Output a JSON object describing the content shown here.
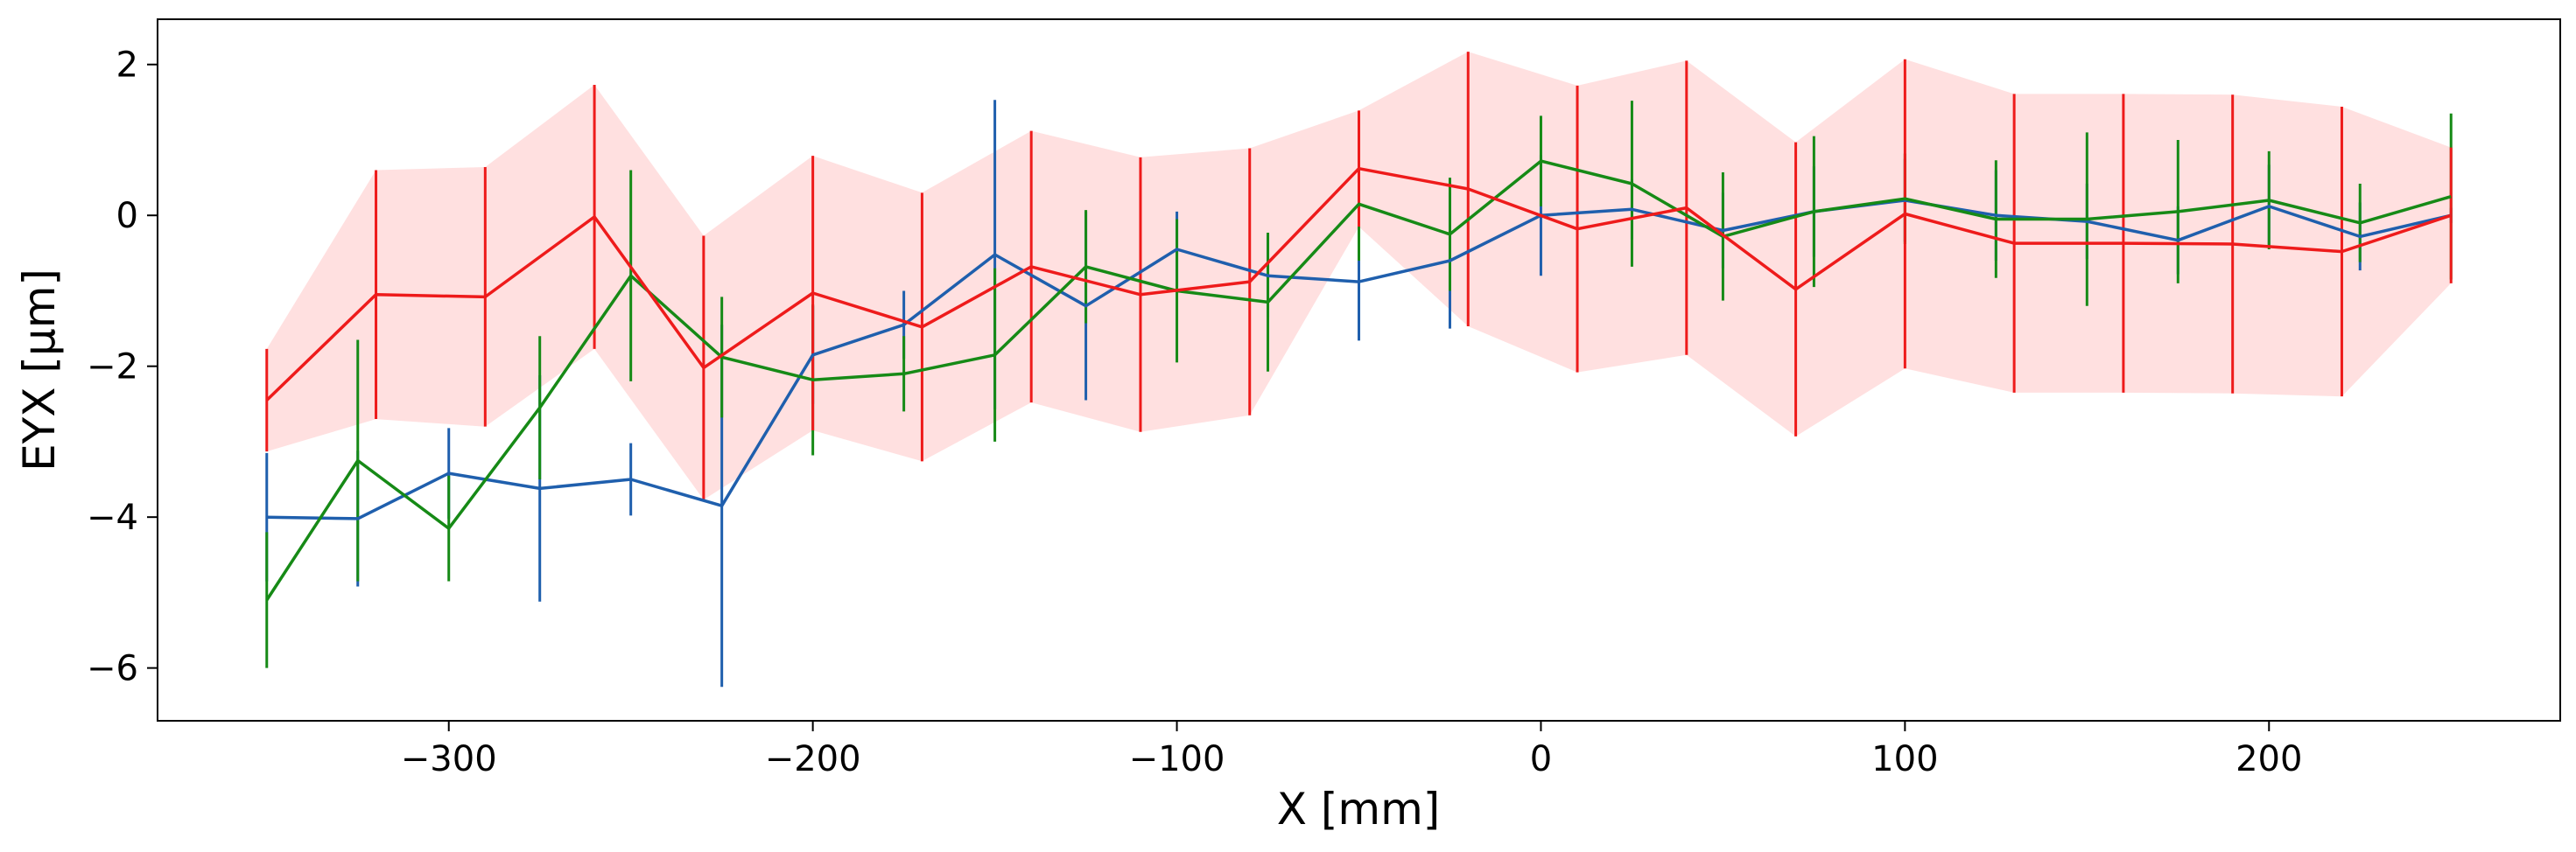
{
  "chart_data": {
    "type": "line",
    "title": "",
    "xlabel": "X [mm]",
    "ylabel": "EYX [µm]",
    "xlim": [
      -380,
      280
    ],
    "ylim": [
      -6.7,
      2.6
    ],
    "xticks": [
      -300,
      -200,
      -100,
      0,
      100,
      200
    ],
    "xtick_labels": [
      "−300",
      "−200",
      "−100",
      "0",
      "100",
      "200"
    ],
    "yticks": [
      2,
      0,
      -2,
      -4,
      -6
    ],
    "ytick_labels": [
      "2",
      "0",
      "−2",
      "−4",
      "−6"
    ],
    "grid": false,
    "legend": "none",
    "series": [
      {
        "name": "blue",
        "color": "#1f5fad",
        "x": [
          -350,
          -325,
          -300,
          -275,
          -250,
          -225,
          -200,
          -175,
          -150,
          -125,
          -100,
          -75,
          -50,
          -25,
          0,
          25,
          50,
          75,
          100,
          125,
          150,
          175,
          200,
          225,
          250
        ],
        "y": [
          -4.0,
          -4.02,
          -3.42,
          -3.62,
          -3.5,
          -3.85,
          -1.85,
          -1.45,
          -0.52,
          -1.2,
          -0.45,
          -0.8,
          -0.88,
          -0.6,
          0.0,
          0.08,
          -0.2,
          0.05,
          0.2,
          0.0,
          -0.08,
          -0.33,
          0.12,
          -0.28,
          0.0
        ],
        "yerr": [
          0.85,
          0.9,
          0.6,
          1.5,
          0.48,
          2.4,
          0.65,
          0.45,
          2.05,
          1.25,
          0.5,
          0.55,
          0.78,
          0.9,
          0.8,
          0.4,
          0.5,
          0.6,
          0.55,
          0.6,
          0.5,
          0.45,
          0.55,
          0.45,
          0.1
        ]
      },
      {
        "name": "green",
        "color": "#168a16",
        "x": [
          -350,
          -325,
          -300,
          -275,
          -250,
          -225,
          -200,
          -175,
          -150,
          -125,
          -100,
          -75,
          -50,
          -25,
          0,
          25,
          50,
          75,
          100,
          125,
          150,
          175,
          200,
          225,
          250
        ],
        "y": [
          -5.1,
          -3.25,
          -4.15,
          -2.55,
          -0.8,
          -1.88,
          -2.18,
          -2.1,
          -1.85,
          -0.68,
          -1.0,
          -1.15,
          0.15,
          -0.25,
          0.72,
          0.42,
          -0.28,
          0.05,
          0.22,
          -0.05,
          -0.05,
          0.05,
          0.2,
          -0.1,
          0.25
        ],
        "yerr": [
          0.9,
          1.6,
          0.7,
          0.95,
          1.4,
          0.8,
          1.0,
          0.5,
          1.15,
          0.75,
          0.95,
          0.92,
          0.75,
          0.75,
          0.6,
          1.1,
          0.85,
          1.0,
          0.6,
          0.78,
          1.15,
          0.95,
          0.65,
          0.52,
          1.1
        ]
      },
      {
        "name": "red",
        "color": "#ee1b1b",
        "x": [
          -350,
          -320,
          -290,
          -260,
          -230,
          -200,
          -170,
          -140,
          -110,
          -80,
          -50,
          -20,
          10,
          40,
          70,
          100,
          130,
          160,
          190,
          220,
          250
        ],
        "y": [
          -2.45,
          -1.05,
          -1.08,
          -0.02,
          -2.02,
          -1.03,
          -1.48,
          -0.68,
          -1.05,
          -0.88,
          0.62,
          0.35,
          -0.18,
          0.1,
          -0.98,
          0.02,
          -0.37,
          -0.37,
          -0.38,
          -0.48,
          0.0
        ],
        "yerr": [
          0.68,
          1.65,
          1.72,
          1.75,
          1.75,
          1.82,
          1.78,
          1.8,
          1.82,
          1.77,
          0.77,
          1.82,
          1.9,
          1.95,
          1.95,
          2.05,
          1.98,
          1.98,
          1.98,
          1.92,
          0.9
        ],
        "band_color": "#ffd6d6"
      }
    ]
  }
}
